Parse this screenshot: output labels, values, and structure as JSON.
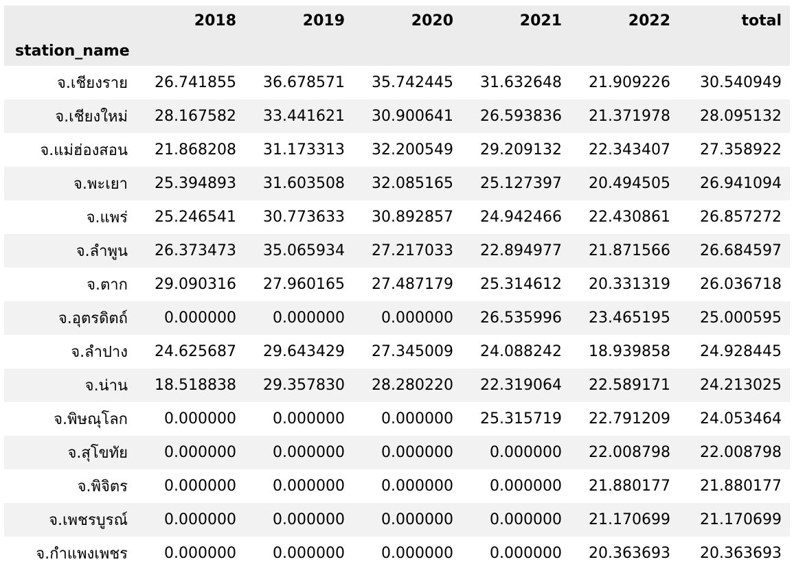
{
  "table": {
    "index_name": "station_name",
    "columns": [
      "2018",
      "2019",
      "2020",
      "2021",
      "2022",
      "total"
    ],
    "rows": [
      {
        "name": "จ.เชียงราย",
        "values": [
          "26.741855",
          "36.678571",
          "35.742445",
          "31.632648",
          "21.909226",
          "30.540949"
        ]
      },
      {
        "name": "จ.เชียงใหม่",
        "values": [
          "28.167582",
          "33.441621",
          "30.900641",
          "26.593836",
          "21.371978",
          "28.095132"
        ]
      },
      {
        "name": "จ.แม่ฮ่องสอน",
        "values": [
          "21.868208",
          "31.173313",
          "32.200549",
          "29.209132",
          "22.343407",
          "27.358922"
        ]
      },
      {
        "name": "จ.พะเยา",
        "values": [
          "25.394893",
          "31.603508",
          "32.085165",
          "25.127397",
          "20.494505",
          "26.941094"
        ]
      },
      {
        "name": "จ.แพร่",
        "values": [
          "25.246541",
          "30.773633",
          "30.892857",
          "24.942466",
          "22.430861",
          "26.857272"
        ]
      },
      {
        "name": "จ.ลำพูน",
        "values": [
          "26.373473",
          "35.065934",
          "27.217033",
          "22.894977",
          "21.871566",
          "26.684597"
        ]
      },
      {
        "name": "จ.ตาก",
        "values": [
          "29.090316",
          "27.960165",
          "27.487179",
          "25.314612",
          "20.331319",
          "26.036718"
        ]
      },
      {
        "name": "จ.อุตรดิตถ์",
        "values": [
          "0.000000",
          "0.000000",
          "0.000000",
          "26.535996",
          "23.465195",
          "25.000595"
        ]
      },
      {
        "name": "จ.ลำปาง",
        "values": [
          "24.625687",
          "29.643429",
          "27.345009",
          "24.088242",
          "18.939858",
          "24.928445"
        ]
      },
      {
        "name": "จ.น่าน",
        "values": [
          "18.518838",
          "29.357830",
          "28.280220",
          "22.319064",
          "22.589171",
          "24.213025"
        ]
      },
      {
        "name": "จ.พิษณุโลก",
        "values": [
          "0.000000",
          "0.000000",
          "0.000000",
          "25.315719",
          "22.791209",
          "24.053464"
        ]
      },
      {
        "name": "จ.สุโขทัย",
        "values": [
          "0.000000",
          "0.000000",
          "0.000000",
          "0.000000",
          "22.008798",
          "22.008798"
        ]
      },
      {
        "name": "จ.พิจิตร",
        "values": [
          "0.000000",
          "0.000000",
          "0.000000",
          "0.000000",
          "21.880177",
          "21.880177"
        ]
      },
      {
        "name": "จ.เพชรบูรณ์",
        "values": [
          "0.000000",
          "0.000000",
          "0.000000",
          "0.000000",
          "21.170699",
          "21.170699"
        ]
      },
      {
        "name": "จ.กำแพงเพชร",
        "values": [
          "0.000000",
          "0.000000",
          "0.000000",
          "0.000000",
          "20.363693",
          "20.363693"
        ]
      }
    ]
  },
  "colors": {
    "header_bg": "#ececec",
    "stripe_bg": "#f2f2f2",
    "row_bg": "#ffffff",
    "text": "#000000"
  }
}
